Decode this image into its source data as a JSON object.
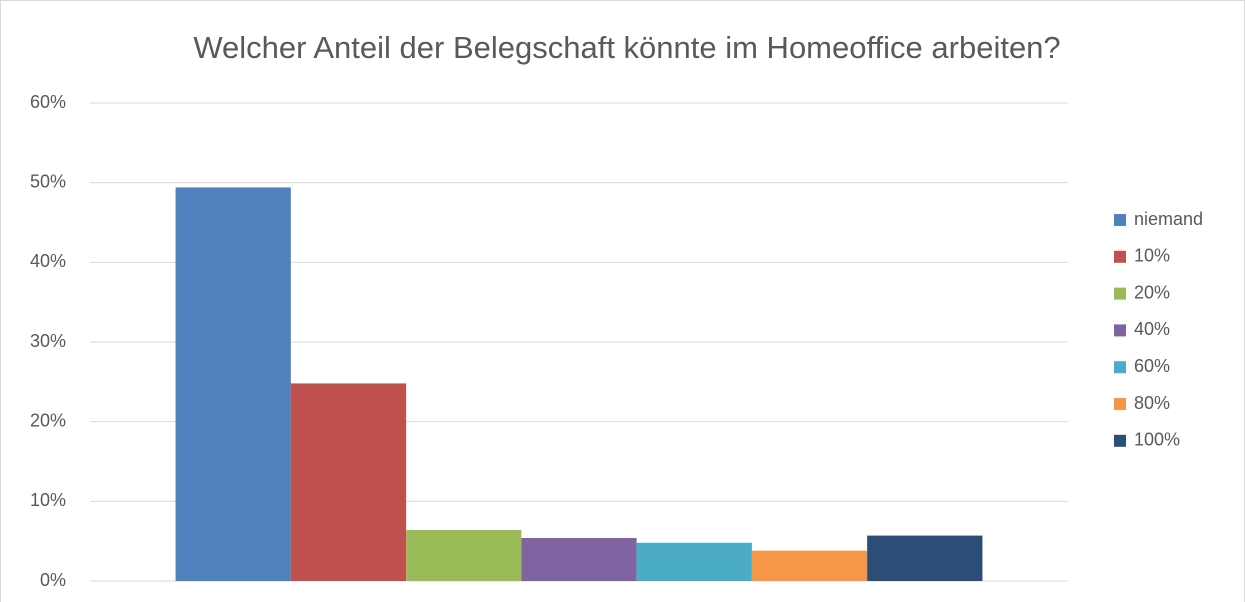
{
  "chart_data": {
    "type": "bar",
    "title": "Welcher Anteil der Belegschaft könnte im Homeoffice arbeiten?",
    "categories": [
      null
    ],
    "series": [
      {
        "name": "niemand",
        "color": "#4f81bd",
        "values": [
          49.4
        ]
      },
      {
        "name": "10%",
        "color": "#c0504d",
        "values": [
          24.8
        ]
      },
      {
        "name": "20%",
        "color": "#9bbb59",
        "values": [
          6.4
        ]
      },
      {
        "name": "40%",
        "color": "#8064a2",
        "values": [
          5.4
        ]
      },
      {
        "name": "60%",
        "color": "#4bacc6",
        "values": [
          4.8
        ]
      },
      {
        "name": "80%",
        "color": "#f79646",
        "values": [
          3.8
        ]
      },
      {
        "name": "100%",
        "color": "#2c4d75",
        "values": [
          5.7
        ]
      }
    ],
    "ylim": [
      0,
      60
    ],
    "yticks": [
      {
        "value": 0,
        "label": "0%"
      },
      {
        "value": 10,
        "label": "10%"
      },
      {
        "value": 20,
        "label": "20%"
      },
      {
        "value": 30,
        "label": "30%"
      },
      {
        "value": 40,
        "label": "40%"
      },
      {
        "value": 50,
        "label": "50%"
      },
      {
        "value": 60,
        "label": "60%"
      }
    ],
    "grid": true,
    "legend": "right"
  }
}
